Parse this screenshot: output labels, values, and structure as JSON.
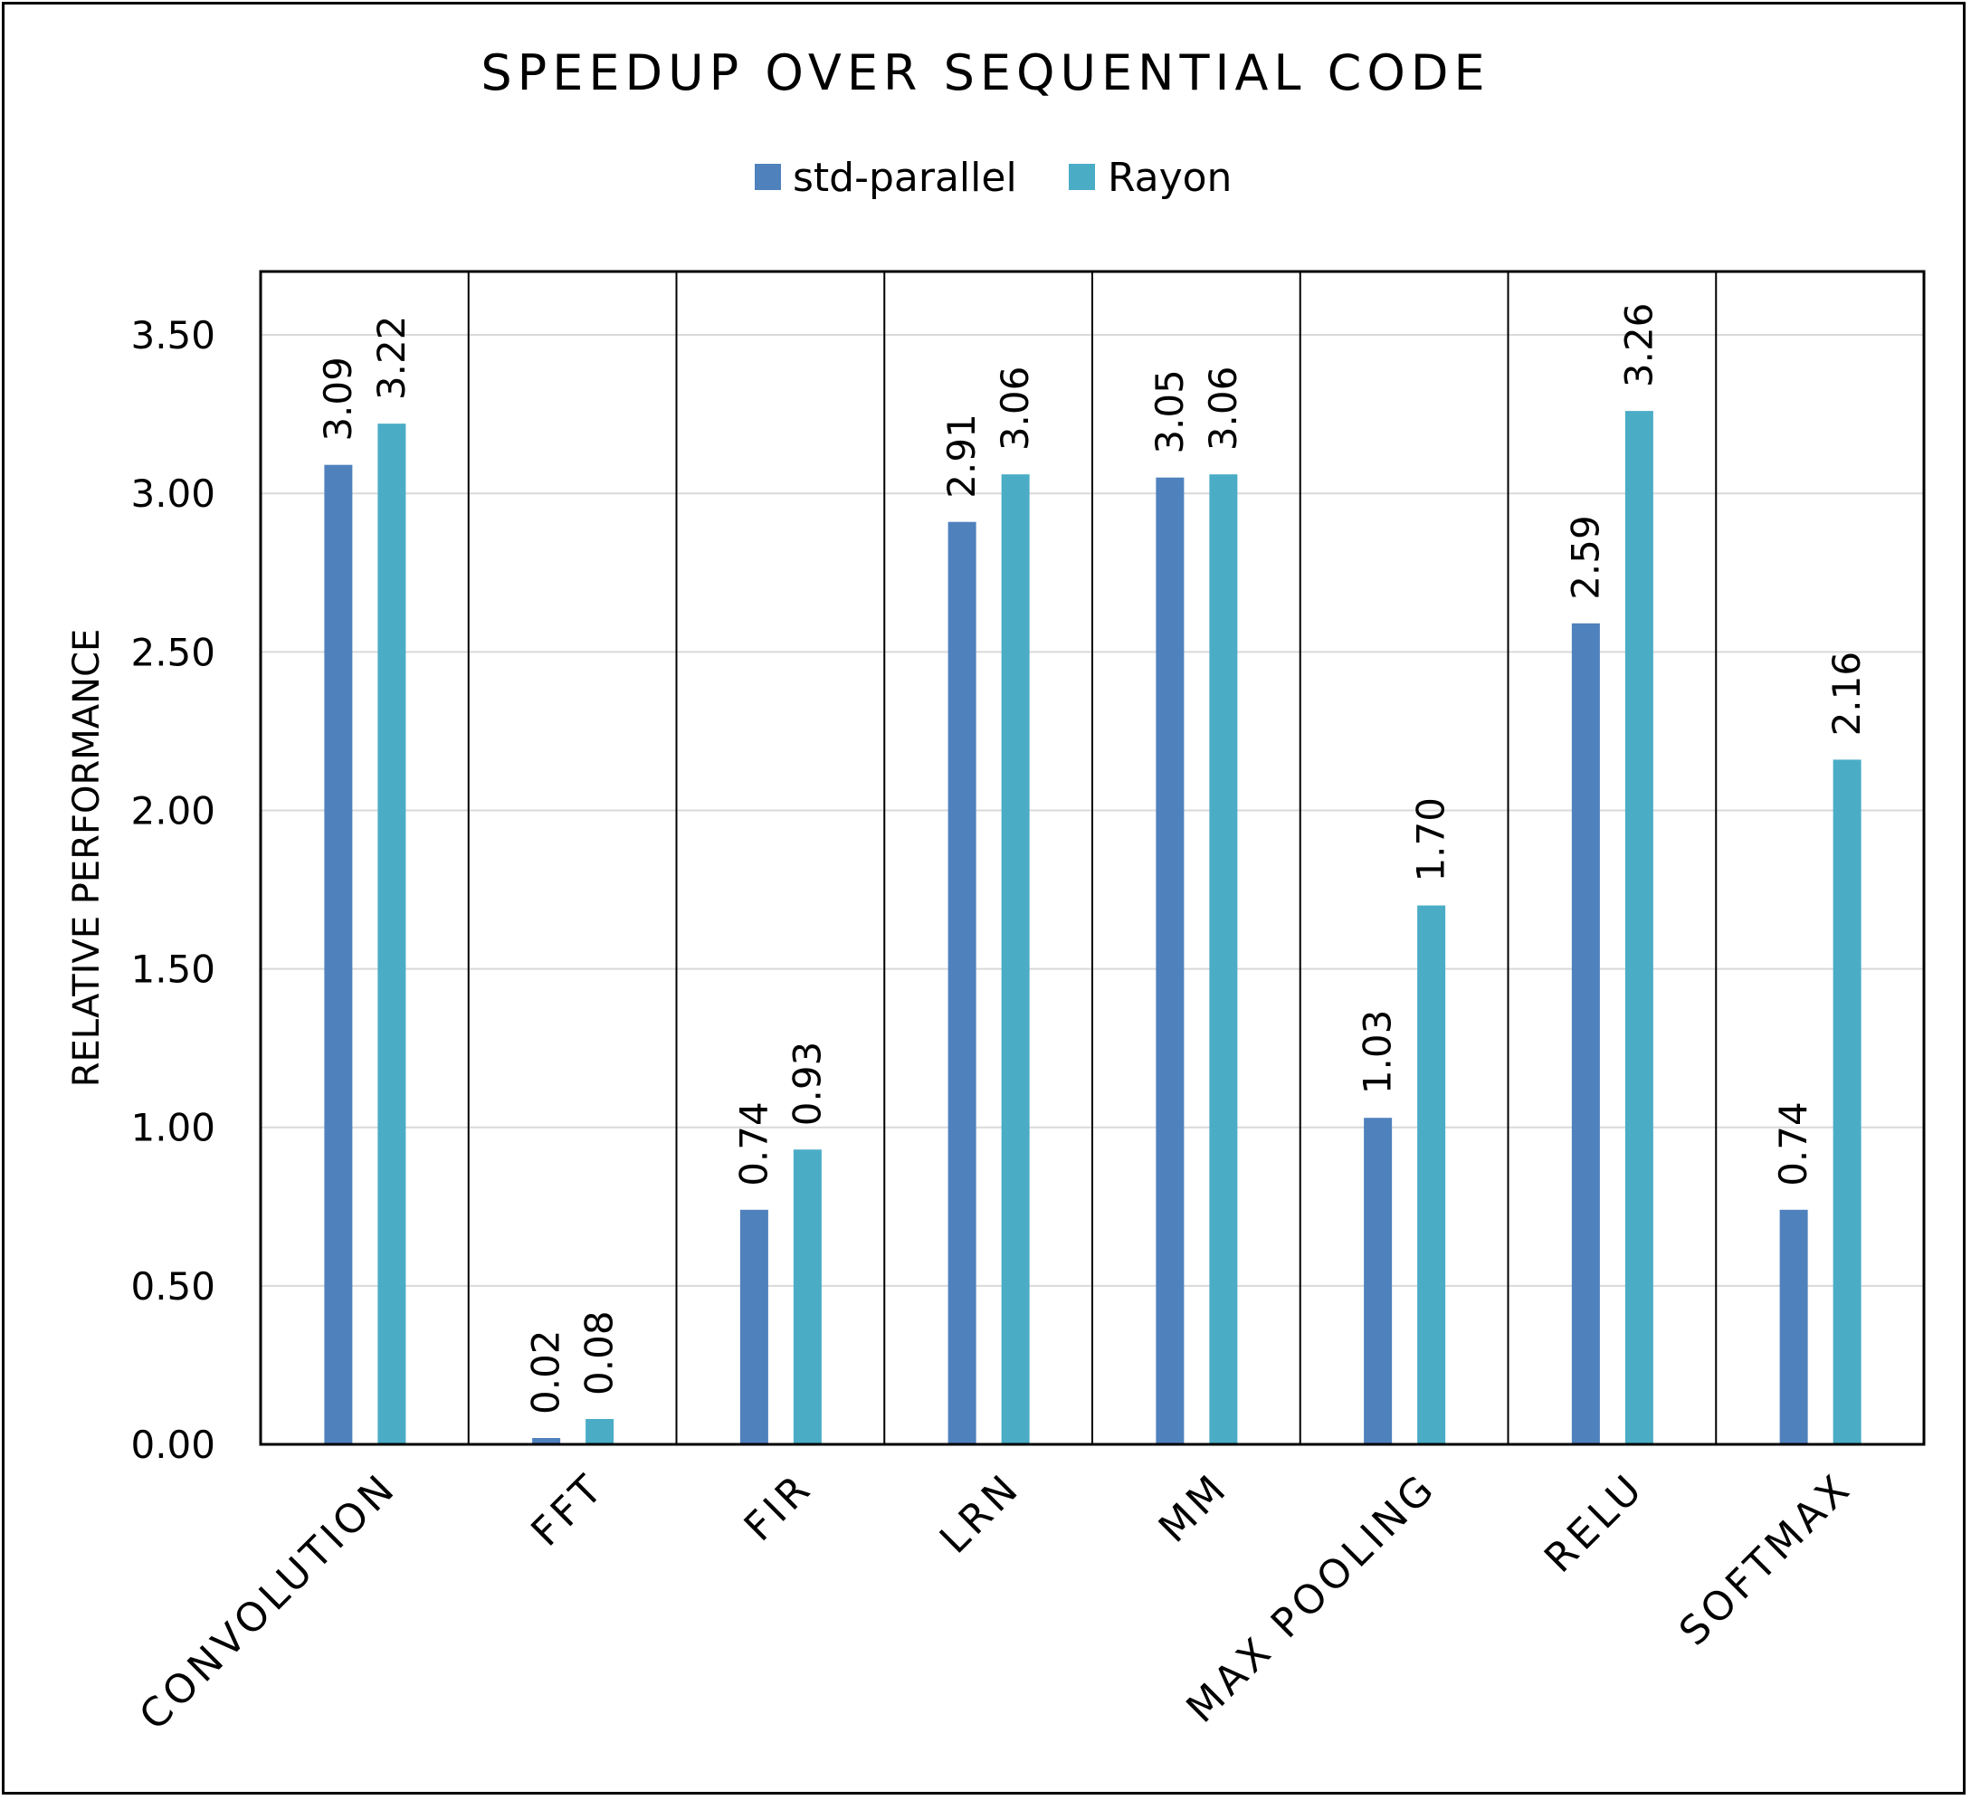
{
  "chart_data": {
    "type": "bar",
    "title": "SPEEDUP OVER SEQUENTIAL CODE",
    "ylabel": "RELATIVE PERFORMANCE",
    "xlabel": "",
    "ylim": [
      0,
      3.7
    ],
    "yticks": [
      "0.00",
      "0.50",
      "1.00",
      "1.50",
      "2.00",
      "2.50",
      "3.00",
      "3.50"
    ],
    "ytick_values": [
      0,
      0.5,
      1.0,
      1.5,
      2.0,
      2.5,
      3.0,
      3.5
    ],
    "grid": "horizontal",
    "category_dividers": true,
    "legend_position": "top-center",
    "categories": [
      "CONVOLUTION",
      "FFT",
      "FIR",
      "LRN",
      "MM",
      "MAX POOLING",
      "RELU",
      "SOFTMAX"
    ],
    "series": [
      {
        "name": "std-parallel",
        "color": "#4F81BD",
        "values": [
          3.09,
          0.02,
          0.74,
          2.91,
          3.05,
          1.03,
          2.59,
          0.74
        ],
        "labels": [
          "3.09",
          "0.02",
          "0.74",
          "2.91",
          "3.05",
          "1.03",
          "2.59",
          "0.74"
        ]
      },
      {
        "name": "Rayon",
        "color": "#4BACC6",
        "values": [
          3.22,
          0.08,
          0.93,
          3.06,
          3.06,
          1.7,
          3.26,
          2.16
        ],
        "labels": [
          "3.22",
          "0.08",
          "0.93",
          "3.06",
          "3.06",
          "1.70",
          "3.26",
          "2.16"
        ]
      }
    ]
  }
}
